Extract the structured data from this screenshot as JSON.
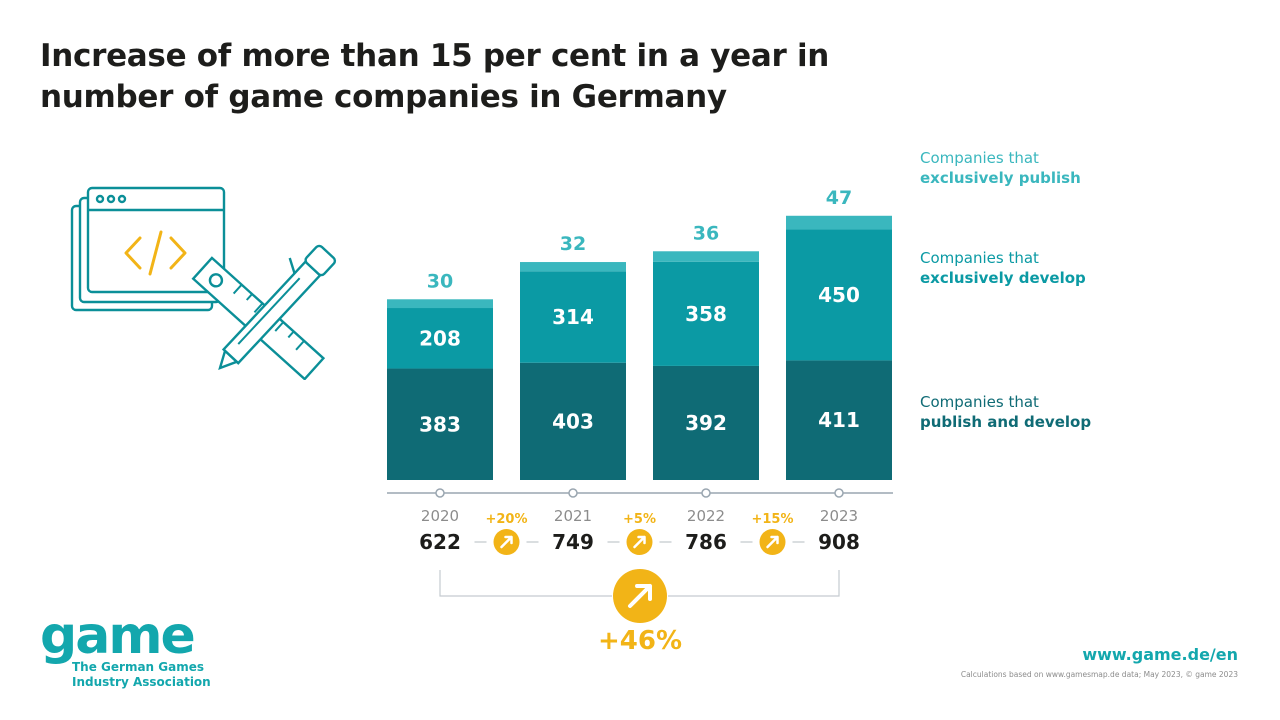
{
  "title": "Increase of more than 15 per cent in a year in number of game companies in Germany",
  "chart_data": {
    "type": "bar",
    "stacked": true,
    "categories": [
      "2020",
      "2021",
      "2022",
      "2023"
    ],
    "series": [
      {
        "name": "Companies that publish and develop",
        "values": [
          383,
          403,
          392,
          411
        ],
        "color": "#0f6b75"
      },
      {
        "name": "Companies that exclusively develop",
        "values": [
          208,
          314,
          358,
          450
        ],
        "color": "#0b9aa4"
      },
      {
        "name": "Companies that exclusively publish",
        "values": [
          30,
          32,
          36,
          47
        ],
        "color": "#3ab7be"
      }
    ],
    "totals": [
      622,
      749,
      786,
      908
    ],
    "year_over_year_change": [
      "+20%",
      "+5%",
      "+15%"
    ],
    "overall_change": "+46%",
    "legend_placement": "right",
    "grid": false
  },
  "legend": [
    {
      "line1": "Companies that",
      "line2": "exclusively publish"
    },
    {
      "line1": "Companies that",
      "line2": "exclusively develop"
    },
    {
      "line1": "Companies that",
      "line2": "publish and develop"
    }
  ],
  "logo": {
    "word": "game",
    "subtitle": "The German Games Industry Association"
  },
  "website": "www.game.de/en",
  "source": "Calculations based on www.gamesmap.de data; May 2023, © game 2023",
  "colors": {
    "accent_yellow": "#f2b417",
    "teal_light": "#3ab7be",
    "teal_mid": "#0b9aa4",
    "teal_dark": "#0f6b75"
  }
}
